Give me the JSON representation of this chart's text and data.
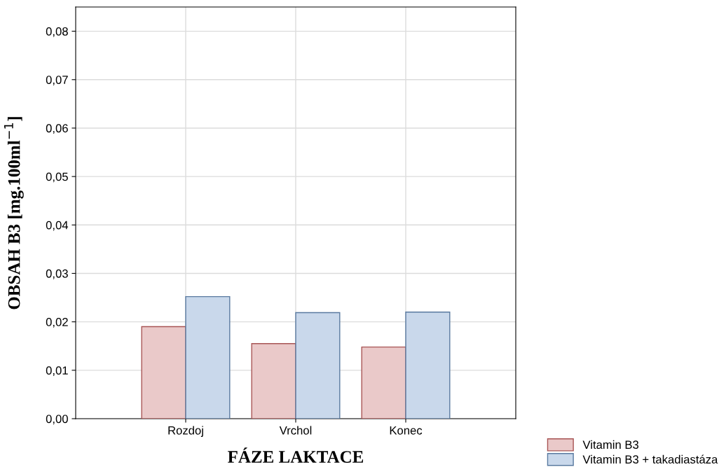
{
  "chart_data": {
    "type": "bar",
    "xlabel": "FÁZE LAKTACE",
    "ylabel": "OBSAH B3 [mg.100ml$^{−1}$]",
    "categories": [
      "Rozdoj",
      "Vrchol",
      "Konec"
    ],
    "series": [
      {
        "name": "Vitamin B3",
        "color": "#eac9c9",
        "values": [
          0.019,
          0.0155,
          0.0148
        ]
      },
      {
        "name": "Vitamin B3 + takadiastáza",
        "color": "#c9d8eb",
        "values": [
          0.0252,
          0.0219,
          0.022
        ]
      }
    ],
    "ylim": [
      0,
      0.085
    ],
    "yticks": [
      {
        "value": 0,
        "label": "0,00"
      },
      {
        "value": 0.01,
        "label": "0,01"
      },
      {
        "value": 0.02,
        "label": "0,02"
      },
      {
        "value": 0.03,
        "label": "0,03"
      },
      {
        "value": 0.04,
        "label": "0,04"
      },
      {
        "value": 0.05,
        "label": "0,05"
      },
      {
        "value": 0.06,
        "label": "0,06"
      },
      {
        "value": 0.07,
        "label": "0,07"
      },
      {
        "value": 0.08,
        "label": "0,08"
      }
    ],
    "grid": true,
    "legend": "bottom right"
  }
}
